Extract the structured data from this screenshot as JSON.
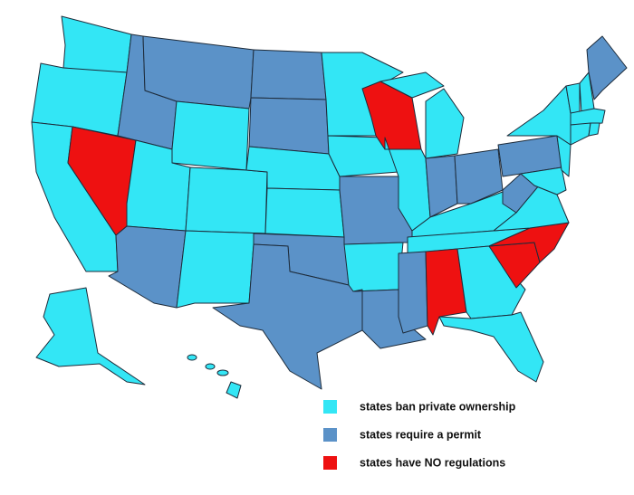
{
  "legend": {
    "items": [
      {
        "label": "states ban private ownership",
        "color": "#33e6f5"
      },
      {
        "label": "states require a permit",
        "color": "#5b92c8"
      },
      {
        "label": "states have NO regulations",
        "color": "#ee1111"
      }
    ]
  }
}
